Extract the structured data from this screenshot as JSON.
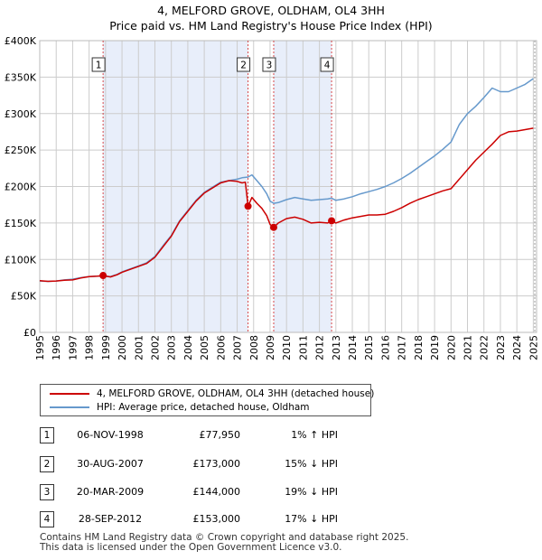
{
  "title": {
    "line1": "4, MELFORD GROVE, OLDHAM, OL4 3HH",
    "line2": "Price paid vs. HM Land Registry's House Price Index (HPI)"
  },
  "colors": {
    "property": "#cc0000",
    "hpi": "#6699cc",
    "shade": "#e8eefa",
    "grid": "#cccccc"
  },
  "chart_data": {
    "type": "line",
    "title": "4, MELFORD GROVE, OLDHAM, OL4 3HH — Price paid vs. HM Land Registry's House Price Index (HPI)",
    "xlabel": "",
    "ylabel": "",
    "xlim": [
      1995,
      2025.2
    ],
    "ylim": [
      0,
      400000
    ],
    "grid": true,
    "x_ticks": [
      1995,
      1996,
      1997,
      1998,
      1999,
      2000,
      2001,
      2002,
      2003,
      2004,
      2005,
      2006,
      2007,
      2008,
      2009,
      2010,
      2011,
      2012,
      2013,
      2014,
      2015,
      2016,
      2017,
      2018,
      2019,
      2020,
      2021,
      2022,
      2023,
      2024,
      2025
    ],
    "x_tick_labels": [
      "1995",
      "1996",
      "1997",
      "1998",
      "1999",
      "2000",
      "2001",
      "2002",
      "2003",
      "2004",
      "2005",
      "2006",
      "2007",
      "2008",
      "2009",
      "2010",
      "2011",
      "2012",
      "2013",
      "2014",
      "2015",
      "2016",
      "2017",
      "2018",
      "2019",
      "2020",
      "2021",
      "2022",
      "2023",
      "2024",
      "2025"
    ],
    "y_ticks": [
      0,
      50000,
      100000,
      150000,
      200000,
      250000,
      300000,
      350000,
      400000
    ],
    "y_tick_labels": [
      "£0",
      "£50K",
      "£100K",
      "£150K",
      "£200K",
      "£250K",
      "£300K",
      "£350K",
      "£400K"
    ],
    "shaded_ranges": [
      [
        1998.85,
        2007.66
      ],
      [
        2009.22,
        2012.74
      ]
    ],
    "sale_markers": [
      {
        "label": "1",
        "x": 1998.85,
        "y": 77950
      },
      {
        "label": "2",
        "x": 2007.66,
        "y": 173000
      },
      {
        "label": "3",
        "x": 2009.22,
        "y": 144000
      },
      {
        "label": "4",
        "x": 2012.74,
        "y": 153000
      }
    ],
    "series": [
      {
        "name": "4, MELFORD GROVE, OLDHAM, OL4 3HH (detached house)",
        "color": "#cc0000",
        "x": [
          1995,
          1995.5,
          1996,
          1996.5,
          1997,
          1997.5,
          1998,
          1998.5,
          1998.85,
          1999.3,
          1999.7,
          2000,
          2000.5,
          2001,
          2001.5,
          2002,
          2002.5,
          2003,
          2003.5,
          2004,
          2004.5,
          2005,
          2005.5,
          2006,
          2006.5,
          2007,
          2007.3,
          2007.5,
          2007.66,
          2007.9,
          2008.2,
          2008.5,
          2008.8,
          2009.0,
          2009.22,
          2009.5,
          2010,
          2010.5,
          2011,
          2011.5,
          2012,
          2012.5,
          2012.74,
          2013,
          2013.5,
          2014,
          2014.5,
          2015,
          2015.5,
          2016,
          2016.5,
          2017,
          2017.5,
          2018,
          2018.5,
          2019,
          2019.5,
          2020,
          2020.5,
          2021,
          2021.5,
          2022,
          2022.5,
          2023,
          2023.5,
          2024,
          2024.5,
          2025
        ],
        "values": [
          71000,
          70000,
          70500,
          71500,
          72000,
          74500,
          76500,
          77000,
          77950,
          76000,
          79000,
          82500,
          86500,
          90500,
          94500,
          103000,
          117500,
          132000,
          152000,
          166000,
          180000,
          191000,
          198000,
          205000,
          208000,
          207000,
          205000,
          206000,
          173000,
          185000,
          177000,
          170000,
          160000,
          148000,
          144000,
          150000,
          156000,
          158000,
          155000,
          150000,
          151000,
          150000,
          153000,
          150000,
          154000,
          157000,
          159000,
          161000,
          161000,
          162000,
          166000,
          171000,
          177000,
          182000,
          186000,
          190000,
          194000,
          197000,
          210000,
          223000,
          236000,
          247000,
          258000,
          270000,
          275000,
          276000,
          278000,
          280000
        ]
      },
      {
        "name": "HPI: Average price, detached house, Oldham",
        "color": "#6699cc",
        "x": [
          1995,
          1995.5,
          1996,
          1996.5,
          1997,
          1997.5,
          1998,
          1998.5,
          1998.85,
          1999.3,
          1999.7,
          2000,
          2000.5,
          2001,
          2001.5,
          2002,
          2002.5,
          2003,
          2003.5,
          2004,
          2004.5,
          2005,
          2005.5,
          2006,
          2006.5,
          2007,
          2007.3,
          2007.66,
          2007.9,
          2008.2,
          2008.5,
          2008.8,
          2009.0,
          2009.22,
          2009.5,
          2010,
          2010.5,
          2011,
          2011.5,
          2012,
          2012.5,
          2012.74,
          2013,
          2013.5,
          2014,
          2014.5,
          2015,
          2015.5,
          2016,
          2016.5,
          2017,
          2017.5,
          2018,
          2018.5,
          2019,
          2019.5,
          2020,
          2020.5,
          2021,
          2021.5,
          2022,
          2022.5,
          2023,
          2023.5,
          2024,
          2024.5,
          2025
        ],
        "values": [
          70500,
          70000,
          70500,
          72000,
          73000,
          75000,
          76500,
          77000,
          77200,
          76500,
          79500,
          83000,
          87000,
          91000,
          95500,
          104000,
          119000,
          133000,
          153000,
          167000,
          181000,
          192000,
          199000,
          206000,
          208000,
          210000,
          212000,
          213000,
          216000,
          208000,
          200000,
          190000,
          180000,
          177000,
          178000,
          182000,
          185000,
          183000,
          181000,
          182000,
          183000,
          184000,
          181000,
          183000,
          186000,
          190000,
          193000,
          196000,
          200000,
          205000,
          211000,
          218000,
          226000,
          234000,
          242000,
          251000,
          261000,
          285000,
          300000,
          310000,
          322000,
          335000,
          330000,
          330000,
          335000,
          340000,
          348000
        ]
      }
    ]
  },
  "legend": {
    "property_label": "4, MELFORD GROVE, OLDHAM, OL4 3HH (detached house)",
    "hpi_label": "HPI: Average price, detached house, Oldham"
  },
  "transactions": [
    {
      "num": "1",
      "date": "06-NOV-1998",
      "price": "£77,950",
      "hpi": "1% ↑ HPI"
    },
    {
      "num": "2",
      "date": "30-AUG-2007",
      "price": "£173,000",
      "hpi": "15% ↓ HPI"
    },
    {
      "num": "3",
      "date": "20-MAR-2009",
      "price": "£144,000",
      "hpi": "19% ↓ HPI"
    },
    {
      "num": "4",
      "date": "28-SEP-2012",
      "price": "£153,000",
      "hpi": "17% ↓ HPI"
    }
  ],
  "footer": {
    "line1": "Contains HM Land Registry data © Crown copyright and database right 2025.",
    "line2": "This data is licensed under the Open Government Licence v3.0."
  }
}
